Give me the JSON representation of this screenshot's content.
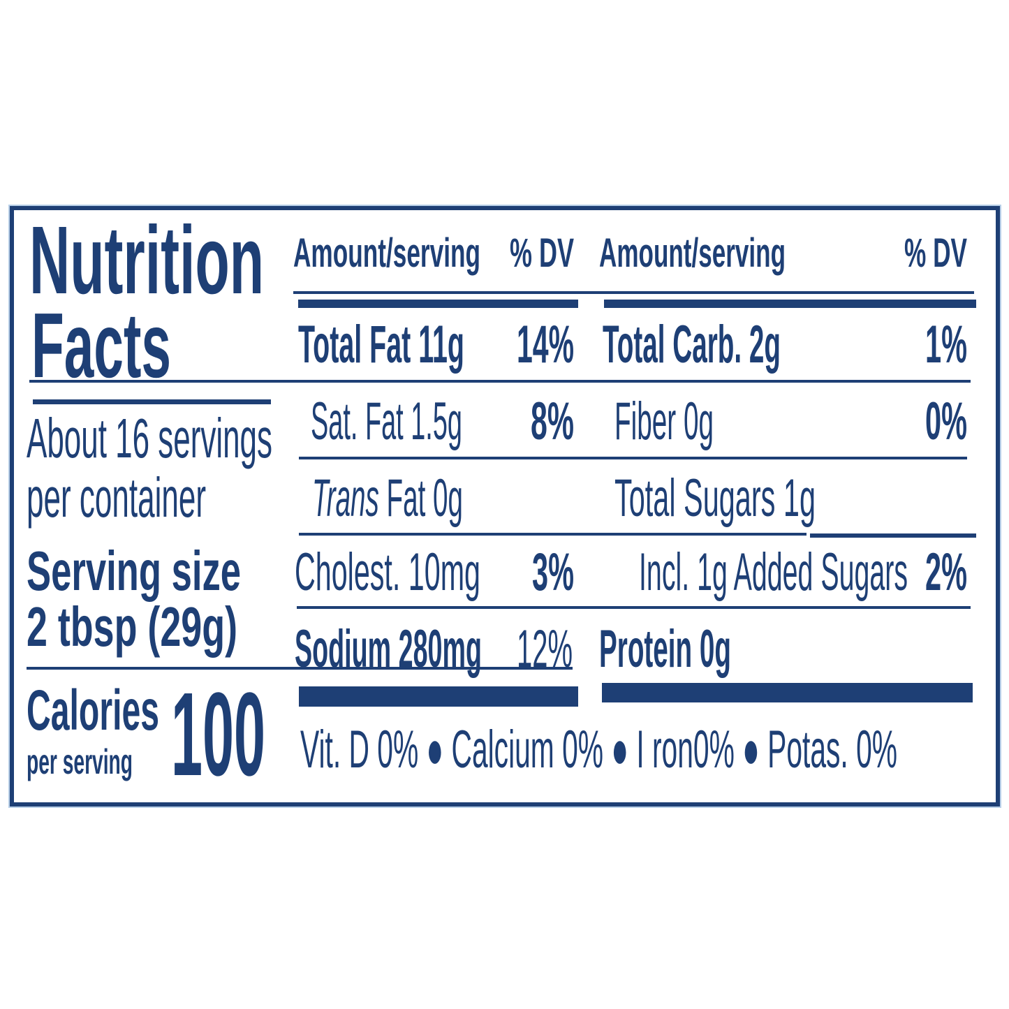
{
  "title_line1": "Nutrition",
  "title_line2": "Facts",
  "servings_line1": "About 16 servings",
  "servings_line2": "per container",
  "serving_size_label": "Serving size",
  "serving_size_value": "2 tbsp (29g)",
  "calories_label": "Calories",
  "calories_sub": "per serving",
  "calories_value": "100",
  "headers": {
    "amount_left": "Amount/serving",
    "dv_left": "% DV",
    "amount_right": "Amount/serving",
    "dv_right": "% DV"
  },
  "left_rows": [
    {
      "label": "Total Fat 11g",
      "dv": "14%"
    },
    {
      "label": "Sat. Fat 1.5g",
      "dv": "8%"
    },
    {
      "label_italic": "Trans",
      "label": " Fat 0g",
      "dv": ""
    },
    {
      "label": "Cholest. 10mg",
      "dv": "3%"
    },
    {
      "label": "Sodium 280mg",
      "dv": "12%"
    }
  ],
  "right_rows": [
    {
      "label": "Total  Carb. 2g",
      "dv": "1%"
    },
    {
      "label": "Fiber 0g",
      "dv": "0%"
    },
    {
      "label": "Total  Sugars 1g",
      "dv": ""
    },
    {
      "label": "Incl.  1g Added Sugars",
      "dv": "2%"
    },
    {
      "label": "Protein 0g",
      "dv": ""
    }
  ],
  "footer": "Vit. D 0% ● Calcium 0% ● I ron0% ● Potas. 0%",
  "colors": {
    "ink": "#1e3f75",
    "background": "#ffffff"
  }
}
